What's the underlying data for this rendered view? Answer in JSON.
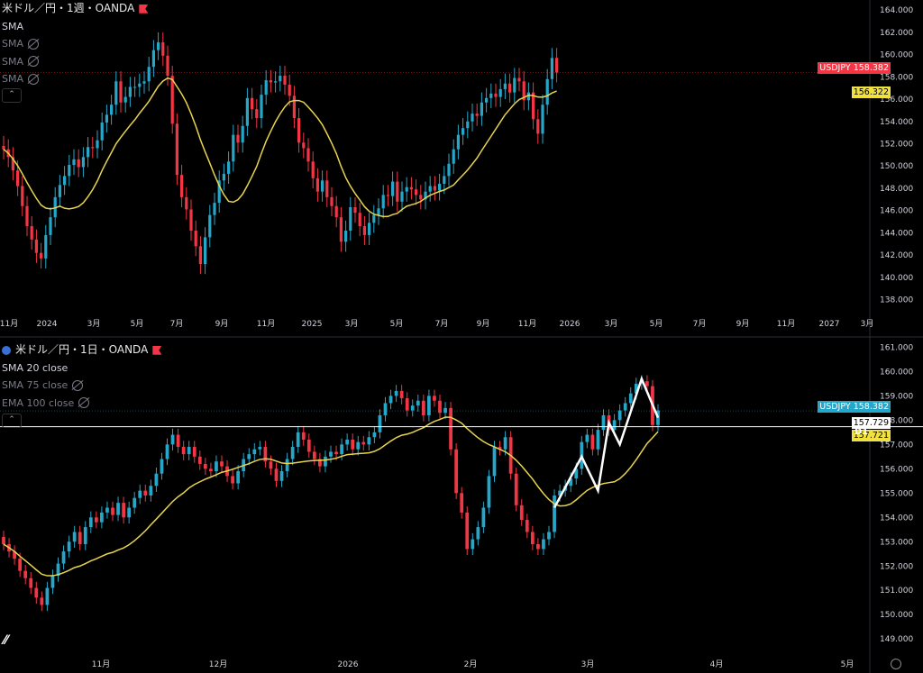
{
  "top_panel": {
    "title": "米ドル／円・1週・OANDA",
    "indicators": [
      {
        "label": "SMA",
        "visible": true
      },
      {
        "label": "SMA",
        "visible": false,
        "icon": "eye-off-icon"
      },
      {
        "label": "SMA",
        "visible": false,
        "icon": "eye-off-icon"
      },
      {
        "label": "SMA",
        "visible": false,
        "icon": "eye-off-icon"
      }
    ],
    "price_tag": {
      "symbol": "USDJPY",
      "value": "158.382"
    },
    "sma_tag": "156.322"
  },
  "bottom_panel": {
    "title": "米ドル／円・1日・OANDA",
    "indicators": [
      {
        "label": "SMA 20 close",
        "visible": true
      },
      {
        "label": "SMA 75 close",
        "visible": false,
        "icon": "eye-off-icon"
      },
      {
        "label": "EMA 100 close",
        "visible": false,
        "icon": "eye-off-icon"
      }
    ],
    "price_tag": {
      "symbol": "USDJPY",
      "value": "158.382"
    },
    "cursor_tag": "157.729",
    "sma_tag": "157.721",
    "interval_label": "D1"
  },
  "colors": {
    "up": "#26a6c9",
    "down": "#f23645",
    "sma": "#e8d44d",
    "bg": "#000000"
  },
  "chart_data": [
    {
      "type": "candlestick",
      "title": "米ドル／円・1週・OANDA",
      "x_tick_labels": [
        "11月",
        "2024",
        "3月",
        "5月",
        "7月",
        "9月",
        "11月",
        "2025",
        "3月",
        "5月",
        "7月",
        "9月",
        "11月",
        "2026",
        "3月",
        "5月",
        "7月",
        "9月",
        "11月",
        "2027",
        "3月"
      ],
      "y_tick_labels": [
        "164.000",
        "162.000",
        "160.000",
        "158.000",
        "156.000",
        "154.000",
        "152.000",
        "150.000",
        "148.000",
        "146.000",
        "144.000",
        "142.000",
        "140.000",
        "138.000"
      ],
      "ylim": [
        137.0,
        164.9
      ],
      "close": [
        151.5,
        150.8,
        149.6,
        148.2,
        146.4,
        144.6,
        143.4,
        142.2,
        141.7,
        143.8,
        145.4,
        147.2,
        148.3,
        149.1,
        150.1,
        150.6,
        149.9,
        150.8,
        151.7,
        151.6,
        152.3,
        153.9,
        154.6,
        155.5,
        157.6,
        155.7,
        156.2,
        157.1,
        157.1,
        157.4,
        157.6,
        158.9,
        160.4,
        161.1,
        159.9,
        158.1,
        153.8,
        149.2,
        147.2,
        146.1,
        144.2,
        142.8,
        141.2,
        143.6,
        145.6,
        146.7,
        148.7,
        149.3,
        150.4,
        152.8,
        152.1,
        153.6,
        156.1,
        155.1,
        154.3,
        156.4,
        157.7,
        157.5,
        157.6,
        158.1,
        157.3,
        156.3,
        154.3,
        152.1,
        151.6,
        150.4,
        148.9,
        147.7,
        148.7,
        147.2,
        146.4,
        145.4,
        143.2,
        144.2,
        146.3,
        145.8,
        144.6,
        143.8,
        144.9,
        145.6,
        146.2,
        147.4,
        147.3,
        148.6,
        146.8,
        147.7,
        148.1,
        147.9,
        147.4,
        147.0,
        147.7,
        148.2,
        147.8,
        148.4,
        149.1,
        150.2,
        151.5,
        152.8,
        153.4,
        154.0,
        154.7,
        154.5,
        155.7,
        156.1,
        156.5,
        156.2,
        156.9,
        157.4,
        156.6,
        157.9,
        157.6,
        155.9,
        156.6,
        154.2,
        152.9,
        155.5,
        157.8,
        159.7,
        158.4
      ],
      "sma_tag": 156.322,
      "last": 158.382
    },
    {
      "type": "candlestick",
      "title": "米ドル／円・1日・OANDA",
      "x_tick_labels": [
        "11月",
        "12月",
        "2026",
        "2月",
        "3月",
        "4月",
        "5月"
      ],
      "y_tick_labels": [
        "161.000",
        "160.000",
        "159.000",
        "158.000",
        "157.000",
        "156.000",
        "155.000",
        "154.000",
        "153.000",
        "152.000",
        "151.000",
        "150.000",
        "149.000"
      ],
      "ylim": [
        148.6,
        161.2
      ],
      "close": [
        152.9,
        152.6,
        152.3,
        151.8,
        151.5,
        151.1,
        150.7,
        150.4,
        151.1,
        151.6,
        152.1,
        152.6,
        153.0,
        153.4,
        152.9,
        153.6,
        154.0,
        153.8,
        154.2,
        154.4,
        154.1,
        154.6,
        154.0,
        154.4,
        154.8,
        155.1,
        154.9,
        155.3,
        155.8,
        156.4,
        157.0,
        157.4,
        156.9,
        156.6,
        156.9,
        156.5,
        156.2,
        156.0,
        155.9,
        156.3,
        156.1,
        155.7,
        155.4,
        155.9,
        156.4,
        156.6,
        156.8,
        156.9,
        156.3,
        156.0,
        155.5,
        155.9,
        156.4,
        156.9,
        157.5,
        157.2,
        156.7,
        156.4,
        156.1,
        156.5,
        156.7,
        156.6,
        157.0,
        157.2,
        156.8,
        157.1,
        157.0,
        157.3,
        157.5,
        158.2,
        158.7,
        159.0,
        159.2,
        158.9,
        158.4,
        158.6,
        158.8,
        158.2,
        159.0,
        158.8,
        158.3,
        158.5,
        156.8,
        155.0,
        154.2,
        152.7,
        153.1,
        153.6,
        154.4,
        155.7,
        156.9,
        156.8,
        157.3,
        155.8,
        154.5,
        153.9,
        153.4,
        152.9,
        152.7,
        153.1,
        153.4,
        154.9,
        155.1,
        155.3,
        155.6,
        156.0,
        157.1,
        157.4,
        156.8,
        157.6,
        158.2,
        157.6,
        158.0,
        158.4,
        158.7,
        159.1,
        159.5,
        159.6,
        159.4,
        157.8,
        158.4
      ],
      "sma_tag": 157.721,
      "last": 158.382,
      "horizontal_line": 157.729
    }
  ]
}
